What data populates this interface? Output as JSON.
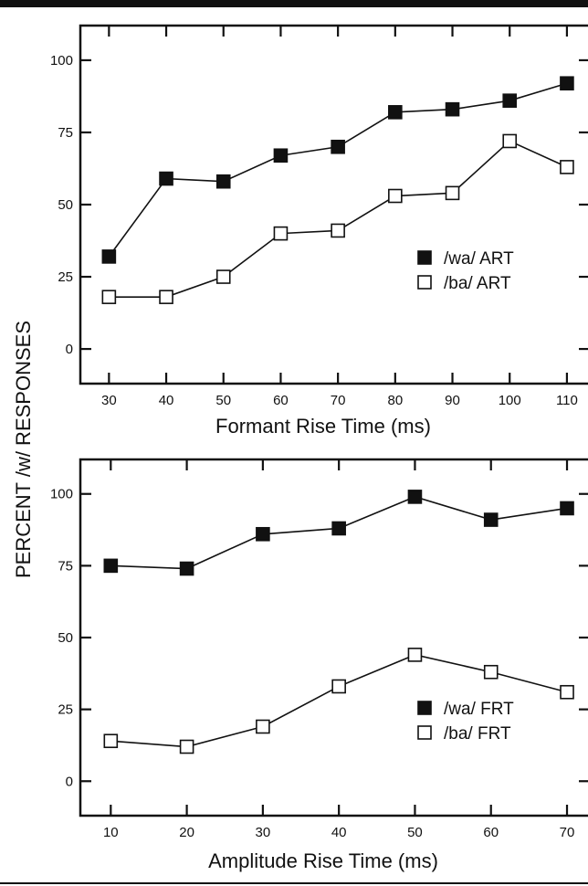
{
  "figure": {
    "ylabel": "PERCENT /w/ RESPONSES"
  },
  "chart_data": [
    {
      "type": "line",
      "xlabel": "Formant Rise Time (ms)",
      "ylabel": "PERCENT /w/ RESPONSES",
      "x": [
        30,
        40,
        50,
        60,
        70,
        80,
        90,
        100,
        110
      ],
      "xticks": [
        "30",
        "40",
        "50",
        "60",
        "70",
        "80",
        "90",
        "100",
        "110"
      ],
      "yticks": [
        "0",
        "25",
        "50",
        "75",
        "100"
      ],
      "xlim": [
        25,
        114
      ],
      "ylim": [
        -12,
        112
      ],
      "legend_position": "right",
      "series": [
        {
          "name": "/wa/ ART",
          "marker": "filled-square",
          "values": [
            32,
            59,
            58,
            67,
            70,
            82,
            83,
            86,
            92
          ]
        },
        {
          "name": "/ba/ ART",
          "marker": "open-square",
          "values": [
            18,
            18,
            25,
            40,
            41,
            53,
            54,
            72,
            63
          ]
        }
      ]
    },
    {
      "type": "line",
      "xlabel": "Amplitude Rise Time (ms)",
      "ylabel": "PERCENT /w/ RESPONSES",
      "x": [
        10,
        20,
        30,
        40,
        50,
        60,
        70
      ],
      "xticks": [
        "10",
        "20",
        "30",
        "40",
        "50",
        "60",
        "70"
      ],
      "yticks": [
        "0",
        "25",
        "50",
        "75",
        "100"
      ],
      "xlim": [
        6,
        73
      ],
      "ylim": [
        -12,
        112
      ],
      "legend_position": "right",
      "series": [
        {
          "name": "/wa/ FRT",
          "marker": "filled-square",
          "values": [
            75,
            74,
            86,
            88,
            99,
            91,
            95
          ]
        },
        {
          "name": "/ba/ FRT",
          "marker": "open-square",
          "values": [
            14,
            12,
            19,
            33,
            44,
            38,
            31
          ]
        }
      ]
    }
  ]
}
